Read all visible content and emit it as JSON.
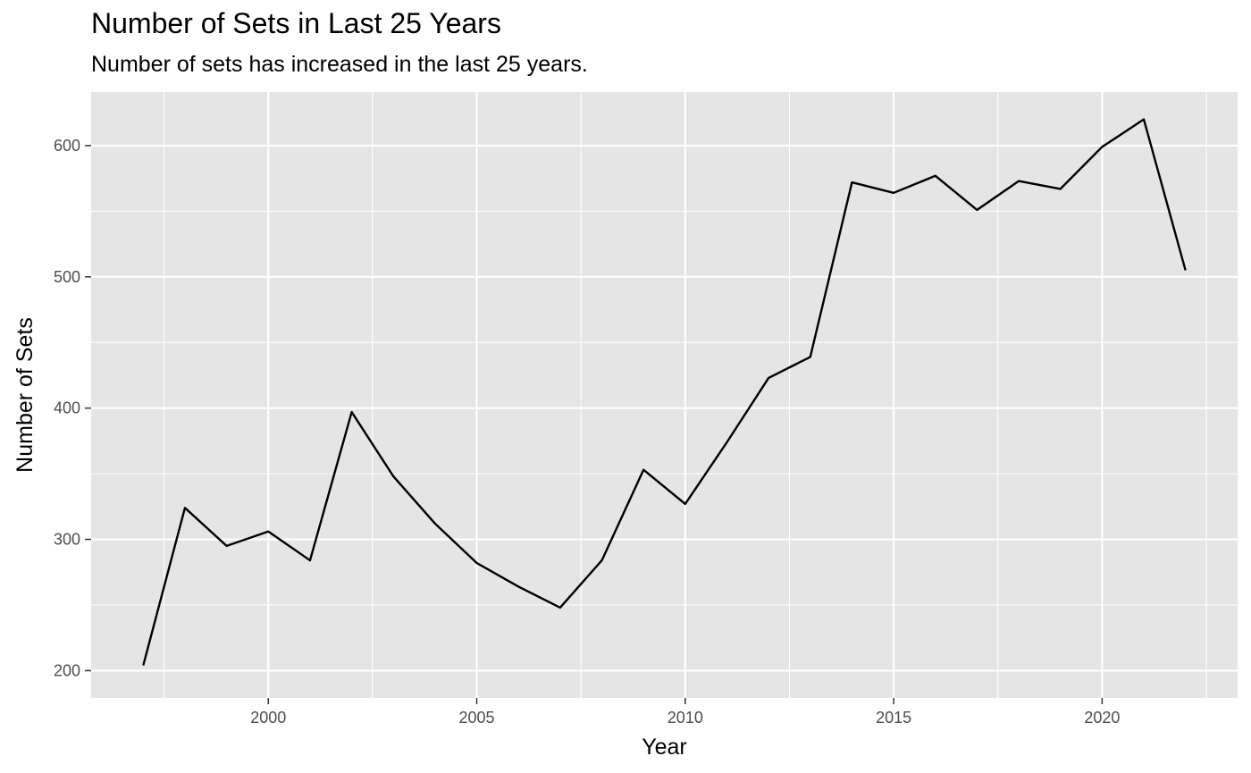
{
  "chart_data": {
    "type": "line",
    "title": "Number of Sets in Last 25 Years",
    "subtitle": "Number of sets has increased in the last 25 years.",
    "xlabel": "Year",
    "ylabel": "Number of Sets",
    "x": [
      1997,
      1998,
      1999,
      2000,
      2001,
      2002,
      2003,
      2004,
      2005,
      2006,
      2007,
      2008,
      2009,
      2010,
      2011,
      2012,
      2013,
      2014,
      2015,
      2016,
      2017,
      2018,
      2019,
      2020,
      2021,
      2022
    ],
    "series": [
      {
        "values": [
          204,
          324,
          295,
          306,
          284,
          397,
          348,
          312,
          282,
          264,
          248,
          284,
          353,
          327,
          374,
          423,
          439,
          572,
          564,
          577,
          551,
          573,
          567,
          599,
          620,
          505
        ]
      }
    ],
    "xlim": [
      1995.75,
      2023.25
    ],
    "ylim": [
      179.2,
      640.8
    ],
    "x_ticks": [
      2000,
      2005,
      2010,
      2015,
      2020
    ],
    "x_tick_labels": [
      "2000",
      "2005",
      "2010",
      "2015",
      "2020"
    ],
    "y_ticks": [
      200,
      300,
      400,
      500,
      600
    ],
    "y_tick_labels": [
      "200",
      "300",
      "400",
      "500",
      "600"
    ],
    "grid": true,
    "legend": "none",
    "colors": {
      "panel": "#e5e5e5",
      "grid": "#ffffff",
      "line": "#000000",
      "tick_text": "#4d4d4d",
      "tick_mark": "#333333"
    }
  }
}
